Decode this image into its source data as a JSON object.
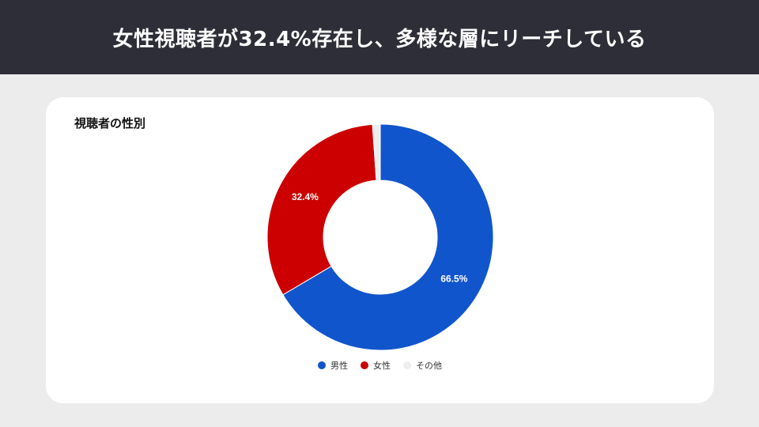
{
  "header": {
    "title": "女性視聴者が32.4%存在し、多様な層にリーチしている"
  },
  "card": {
    "title": "視聴者の性別"
  },
  "chart_data": {
    "type": "pie",
    "donut": true,
    "title": "視聴者の性別",
    "legend_position": "bottom",
    "slices": [
      {
        "label": "男性",
        "value": 66.5,
        "value_label": "66.5%",
        "color": "#1155cc"
      },
      {
        "label": "女性",
        "value": 32.4,
        "value_label": "32.4%",
        "color": "#cc0000"
      },
      {
        "label": "その他",
        "value": 1.1,
        "value_label": "",
        "color": "#eeeeee"
      }
    ]
  }
}
